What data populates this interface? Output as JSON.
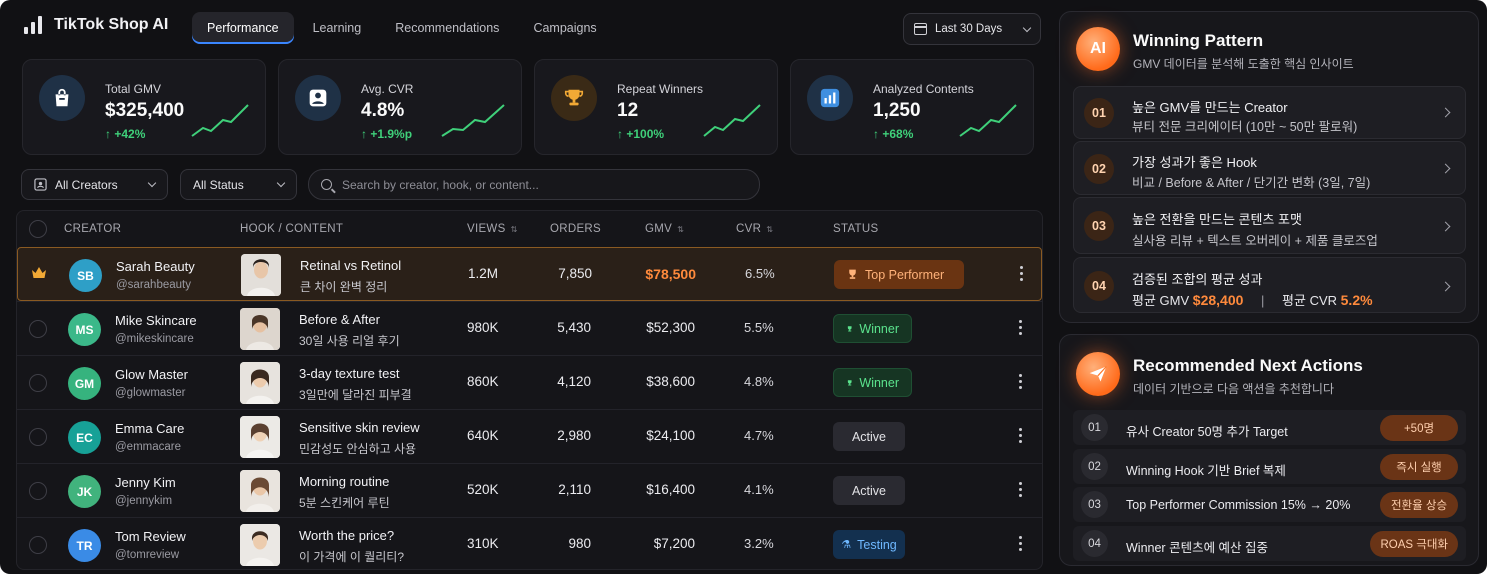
{
  "app": {
    "title": "TikTok Shop AI"
  },
  "tabs": [
    {
      "label": "Performance",
      "active": true
    },
    {
      "label": "Learning",
      "active": false
    },
    {
      "label": "Recommendations",
      "active": false
    },
    {
      "label": "Campaigns",
      "active": false
    }
  ],
  "date_range": {
    "selected": "Last 30 Days"
  },
  "kpis": [
    {
      "label": "Total GMV",
      "value": "$325,400",
      "delta": "↑ +42%",
      "icon": "shopping-bag-icon"
    },
    {
      "label": "Avg. CVR",
      "value": "4.8%",
      "delta": "↑ +1.9%p",
      "icon": "user-icon"
    },
    {
      "label": "Repeat Winners",
      "value": "12",
      "delta": "↑ +100%",
      "icon": "trophy-icon"
    },
    {
      "label": "Analyzed Contents",
      "value": "1,250",
      "delta": "↑ +68%",
      "icon": "bar-chart-icon"
    }
  ],
  "filters": {
    "creators": "All Creators",
    "status": "All Status",
    "search_placeholder": "Search by creator, hook, or content..."
  },
  "table": {
    "headers": {
      "creator": "CREATOR",
      "hook": "HOOK / CONTENT",
      "views": "VIEWS",
      "orders": "ORDERS",
      "gmv": "GMV",
      "cvr": "CVR",
      "status": "STATUS"
    },
    "rows": [
      {
        "initials": "SB",
        "name": "Sarah Beauty",
        "handle": "@sarahbeauty",
        "hook_title": "Retinal vs Retinol",
        "hook_sub": "큰 차이 완벽 정리",
        "views": "1.2M",
        "orders": "7,850",
        "gmv": "$78,500",
        "cvr": "6.5%",
        "status": "Top Performer",
        "avatar_color": "#2e9fc7"
      },
      {
        "initials": "MS",
        "name": "Mike Skincare",
        "handle": "@mikeskincare",
        "hook_title": "Before & After",
        "hook_sub": "30일 사용 리얼 후기",
        "views": "980K",
        "orders": "5,430",
        "gmv": "$52,300",
        "cvr": "5.5%",
        "status": "Winner",
        "avatar_color": "#3bb889"
      },
      {
        "initials": "GM",
        "name": "Glow Master",
        "handle": "@glowmaster",
        "hook_title": "3-day texture test",
        "hook_sub": "3일만에 달라진 피부결",
        "views": "860K",
        "orders": "4,120",
        "gmv": "$38,600",
        "cvr": "4.8%",
        "status": "Winner",
        "avatar_color": "#36b37e"
      },
      {
        "initials": "EC",
        "name": "Emma Care",
        "handle": "@emmacare",
        "hook_title": "Sensitive skin review",
        "hook_sub": "민감성도 안심하고 사용",
        "views": "640K",
        "orders": "2,980",
        "gmv": "$24,100",
        "cvr": "4.7%",
        "status": "Active",
        "avatar_color": "#17a197"
      },
      {
        "initials": "JK",
        "name": "Jenny Kim",
        "handle": "@jennykim",
        "hook_title": "Morning routine",
        "hook_sub": "5분 스킨케어 루틴",
        "views": "520K",
        "orders": "2,110",
        "gmv": "$16,400",
        "cvr": "4.1%",
        "status": "Active",
        "avatar_color": "#41b37d"
      },
      {
        "initials": "TR",
        "name": "Tom Review",
        "handle": "@tomreview",
        "hook_title": "Worth the price?",
        "hook_sub": "이 가격에 이 퀄리티?",
        "views": "310K",
        "orders": "980",
        "gmv": "$7,200",
        "cvr": "3.2%",
        "status": "Testing",
        "avatar_color": "#3a8be6"
      }
    ]
  },
  "winning_pattern": {
    "icon_text": "AI",
    "title": "Winning Pattern",
    "subtitle": "GMV 데이터를 분석해 도출한 핵심 인사이트",
    "items": [
      {
        "num": "01",
        "title": "높은 GMV를 만드는 Creator",
        "desc": "뷰티 전문 크리에이터 (10만 ~ 50만 팔로워)"
      },
      {
        "num": "02",
        "title": "가장 성과가 좋은 Hook",
        "desc": "비교 / Before & After / 단기간 변화 (3일, 7일)"
      },
      {
        "num": "03",
        "title": "높은 전환을 만드는 콘텐츠 포맷",
        "desc": "실사용 리뷰 + 텍스트 오버레이 + 제품 클로즈업"
      }
    ],
    "summary": {
      "num": "04",
      "title": "검증된 조합의 평균 성과",
      "gmv_label": "평균 GMV",
      "gmv_value": "$28,400",
      "sep": "|",
      "cvr_label": "평균 CVR",
      "cvr_value": "5.2%"
    }
  },
  "next_actions": {
    "title": "Recommended Next Actions",
    "subtitle": "데이터 기반으로 다음 액션을 추천합니다",
    "items": [
      {
        "num": "01",
        "text": "유사 Creator 50명 추가 Target",
        "pill": "+50명"
      },
      {
        "num": "02",
        "text": "Winning Hook 기반 Brief 복제",
        "pill": "즉시 실행"
      },
      {
        "num": "03",
        "text": "Top Performer Commission 15% → 20%",
        "pill": "전환율 상승"
      },
      {
        "num": "04",
        "text": "Winner 콘텐츠에 예산 집중",
        "pill": "ROAS 극대화"
      }
    ]
  },
  "colors": {
    "accent": "#ff8a3c",
    "positive": "#3fd07a",
    "link": "#3a86ff"
  }
}
